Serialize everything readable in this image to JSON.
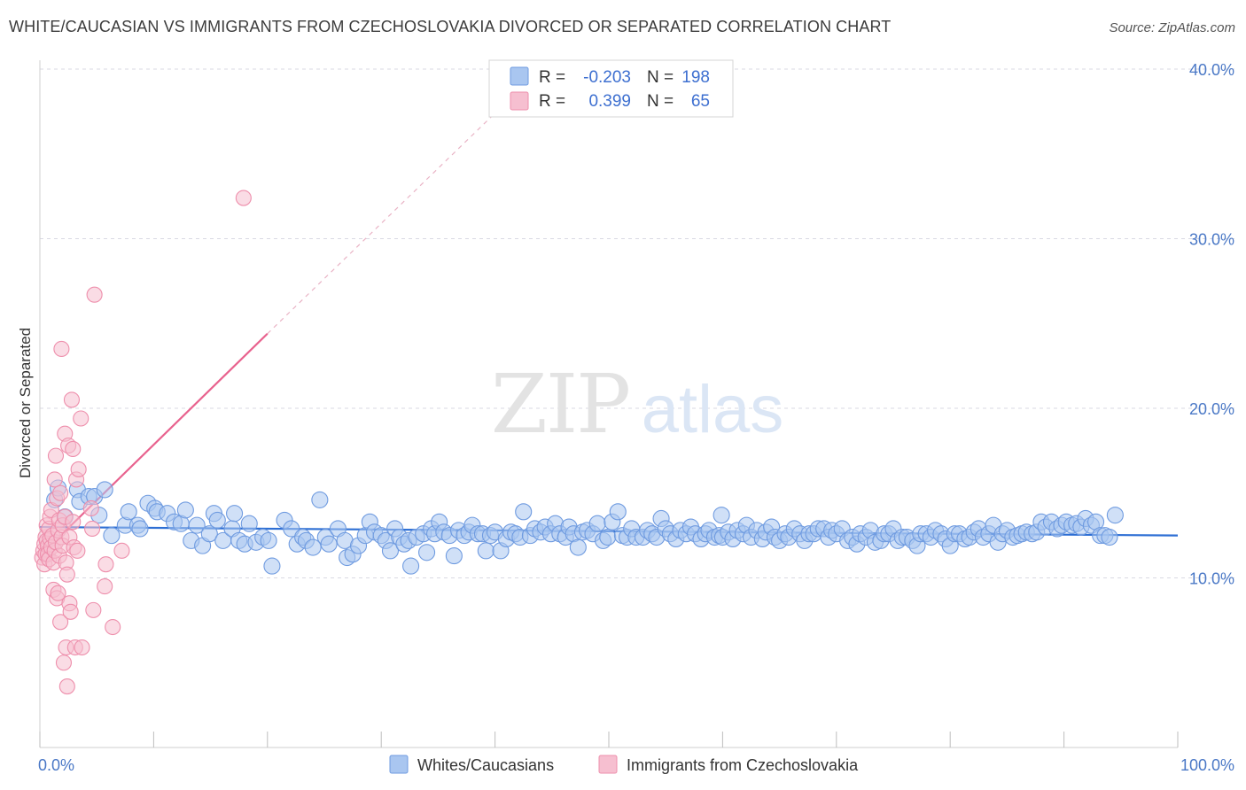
{
  "title": "WHITE/CAUCASIAN VS IMMIGRANTS FROM CZECHOSLOVAKIA DIVORCED OR SEPARATED CORRELATION CHART",
  "source": "Source: ZipAtlas.com",
  "watermark": {
    "zip": "ZIP",
    "atlas": "atlas"
  },
  "colors": {
    "blue_fill": "#a9c6f0",
    "blue_stroke": "#6f9be0",
    "blue_line": "#2e6fd4",
    "pink_fill": "#f6bfd0",
    "pink_stroke": "#ee8fac",
    "pink_line": "#e8628e",
    "grid": "#d9d9e3",
    "tick_label": "#4a78c6"
  },
  "legend": {
    "rows": [
      {
        "r_label": "R =",
        "r_value": "-0.203",
        "n_label": "N =",
        "n_value": "198",
        "series": "blue"
      },
      {
        "r_label": "R =",
        "r_value": "0.399",
        "n_label": "N =",
        "n_value": "65",
        "series": "pink"
      }
    ]
  },
  "bottom_legend": [
    {
      "label": "Whites/Caucasians",
      "series": "blue"
    },
    {
      "label": "Immigrants from Czechoslovakia",
      "series": "pink"
    }
  ],
  "chart_data": {
    "type": "scatter",
    "ylabel": "Divorced or Separated",
    "xlim": [
      0,
      100
    ],
    "ylim": [
      0,
      41.5
    ],
    "x_tick_labels": [
      {
        "value": 0,
        "label": "0.0%"
      },
      {
        "value": 100,
        "label": "100.0%"
      }
    ],
    "y_tick_labels": [
      {
        "value": 10,
        "label": "10.0%"
      },
      {
        "value": 20,
        "label": "20.0%"
      },
      {
        "value": 30,
        "label": "30.0%"
      },
      {
        "value": 40,
        "label": "40.0%"
      }
    ],
    "grid": "horizontal dashed",
    "legend_position": "top-center",
    "series": [
      {
        "name": "Whites/Caucasians",
        "color": "#a9c6f0",
        "trend": {
          "x": [
            0,
            100
          ],
          "y": [
            13.0,
            12.5
          ]
        },
        "points": [
          [
            1.3,
            14.6
          ],
          [
            1.6,
            15.3
          ],
          [
            2.2,
            13.6
          ],
          [
            3.3,
            15.2
          ],
          [
            3.5,
            14.5
          ],
          [
            4.3,
            14.8
          ],
          [
            4.8,
            14.8
          ],
          [
            5.2,
            13.7
          ],
          [
            5.7,
            15.2
          ],
          [
            6.3,
            12.5
          ],
          [
            7.5,
            13.1
          ],
          [
            7.8,
            13.9
          ],
          [
            8.6,
            13.1
          ],
          [
            8.8,
            12.9
          ],
          [
            9.5,
            14.4
          ],
          [
            10.1,
            14.1
          ],
          [
            10.3,
            13.9
          ],
          [
            11.2,
            13.8
          ],
          [
            11.8,
            13.3
          ],
          [
            12.4,
            13.2
          ],
          [
            12.8,
            14.0
          ],
          [
            13.3,
            12.2
          ],
          [
            13.8,
            13.1
          ],
          [
            14.3,
            11.9
          ],
          [
            14.9,
            12.6
          ],
          [
            15.3,
            13.8
          ],
          [
            15.6,
            13.4
          ],
          [
            16.1,
            12.2
          ],
          [
            16.9,
            12.9
          ],
          [
            17.1,
            13.8
          ],
          [
            17.5,
            12.2
          ],
          [
            18.0,
            12.0
          ],
          [
            18.4,
            13.2
          ],
          [
            19.0,
            12.1
          ],
          [
            19.6,
            12.4
          ],
          [
            20.1,
            12.2
          ],
          [
            20.4,
            10.7
          ],
          [
            21.5,
            13.4
          ],
          [
            22.1,
            12.9
          ],
          [
            22.6,
            12.0
          ],
          [
            23.1,
            12.4
          ],
          [
            23.4,
            12.2
          ],
          [
            24.0,
            11.8
          ],
          [
            24.6,
            14.6
          ],
          [
            25.1,
            12.4
          ],
          [
            25.4,
            12.0
          ],
          [
            26.2,
            12.9
          ],
          [
            26.8,
            12.2
          ],
          [
            27.0,
            11.2
          ],
          [
            27.5,
            11.4
          ],
          [
            28.0,
            11.9
          ],
          [
            28.6,
            12.5
          ],
          [
            29.0,
            13.3
          ],
          [
            29.4,
            12.7
          ],
          [
            30.0,
            12.5
          ],
          [
            30.4,
            12.2
          ],
          [
            30.8,
            11.6
          ],
          [
            31.2,
            12.9
          ],
          [
            31.6,
            12.4
          ],
          [
            32.0,
            12.0
          ],
          [
            32.4,
            12.2
          ],
          [
            32.6,
            10.7
          ],
          [
            33.1,
            12.4
          ],
          [
            33.7,
            12.6
          ],
          [
            34.0,
            11.5
          ],
          [
            34.4,
            12.9
          ],
          [
            34.7,
            12.6
          ],
          [
            35.1,
            13.3
          ],
          [
            35.5,
            12.7
          ],
          [
            36.0,
            12.5
          ],
          [
            36.4,
            11.3
          ],
          [
            36.8,
            12.8
          ],
          [
            37.3,
            12.5
          ],
          [
            37.7,
            12.7
          ],
          [
            38.0,
            13.1
          ],
          [
            38.5,
            12.6
          ],
          [
            38.9,
            12.6
          ],
          [
            39.2,
            11.6
          ],
          [
            39.6,
            12.5
          ],
          [
            40.0,
            12.7
          ],
          [
            40.5,
            11.6
          ],
          [
            41.0,
            12.3
          ],
          [
            41.4,
            12.7
          ],
          [
            41.8,
            12.6
          ],
          [
            42.2,
            12.4
          ],
          [
            42.5,
            13.9
          ],
          [
            43.1,
            12.5
          ],
          [
            43.5,
            12.9
          ],
          [
            44.0,
            12.7
          ],
          [
            44.4,
            13.0
          ],
          [
            44.9,
            12.6
          ],
          [
            45.3,
            13.2
          ],
          [
            45.7,
            12.6
          ],
          [
            46.2,
            12.4
          ],
          [
            46.5,
            13.0
          ],
          [
            46.9,
            12.6
          ],
          [
            47.3,
            11.8
          ],
          [
            47.7,
            12.7
          ],
          [
            48.1,
            12.8
          ],
          [
            48.6,
            12.6
          ],
          [
            49.0,
            13.2
          ],
          [
            49.5,
            12.2
          ],
          [
            49.9,
            12.4
          ],
          [
            50.3,
            13.3
          ],
          [
            50.8,
            13.9
          ],
          [
            51.2,
            12.5
          ],
          [
            51.6,
            12.4
          ],
          [
            52.0,
            12.9
          ],
          [
            52.4,
            12.4
          ],
          [
            53.0,
            12.4
          ],
          [
            53.4,
            12.8
          ],
          [
            53.8,
            12.6
          ],
          [
            54.2,
            12.4
          ],
          [
            54.6,
            13.5
          ],
          [
            55.0,
            12.9
          ],
          [
            55.4,
            12.6
          ],
          [
            55.9,
            12.3
          ],
          [
            56.3,
            12.8
          ],
          [
            56.8,
            12.6
          ],
          [
            57.2,
            13.0
          ],
          [
            57.6,
            12.6
          ],
          [
            58.1,
            12.3
          ],
          [
            58.5,
            12.6
          ],
          [
            58.8,
            12.8
          ],
          [
            59.3,
            12.4
          ],
          [
            59.7,
            12.5
          ],
          [
            60.0,
            12.4
          ],
          [
            60.5,
            12.7
          ],
          [
            60.9,
            12.3
          ],
          [
            61.3,
            12.8
          ],
          [
            61.8,
            12.6
          ],
          [
            62.1,
            13.1
          ],
          [
            62.5,
            12.4
          ],
          [
            63.0,
            12.8
          ],
          [
            63.5,
            12.3
          ],
          [
            63.8,
            12.7
          ],
          [
            64.3,
            13.0
          ],
          [
            64.6,
            12.4
          ],
          [
            65.0,
            12.2
          ],
          [
            65.5,
            12.6
          ],
          [
            65.8,
            12.4
          ],
          [
            66.3,
            12.9
          ],
          [
            66.8,
            12.6
          ],
          [
            67.2,
            12.2
          ],
          [
            67.6,
            12.6
          ],
          [
            68.0,
            12.6
          ],
          [
            68.4,
            12.9
          ],
          [
            68.9,
            12.9
          ],
          [
            69.3,
            12.4
          ],
          [
            69.6,
            12.8
          ],
          [
            70.0,
            12.6
          ],
          [
            70.5,
            12.9
          ],
          [
            71.0,
            12.2
          ],
          [
            71.4,
            12.4
          ],
          [
            71.8,
            12.0
          ],
          [
            72.1,
            12.6
          ],
          [
            72.6,
            12.4
          ],
          [
            73.0,
            12.8
          ],
          [
            73.4,
            12.1
          ],
          [
            73.9,
            12.2
          ],
          [
            74.2,
            12.6
          ],
          [
            74.6,
            12.6
          ],
          [
            75.0,
            12.9
          ],
          [
            75.4,
            12.2
          ],
          [
            75.8,
            12.4
          ],
          [
            76.2,
            12.4
          ],
          [
            76.7,
            12.2
          ],
          [
            77.1,
            11.9
          ],
          [
            77.4,
            12.6
          ],
          [
            77.9,
            12.6
          ],
          [
            78.3,
            12.4
          ],
          [
            78.7,
            12.8
          ],
          [
            79.2,
            12.6
          ],
          [
            79.6,
            12.3
          ],
          [
            80.0,
            11.9
          ],
          [
            80.4,
            12.6
          ],
          [
            80.8,
            12.6
          ],
          [
            81.3,
            12.3
          ],
          [
            81.7,
            12.4
          ],
          [
            82.1,
            12.7
          ],
          [
            82.5,
            12.9
          ],
          [
            82.9,
            12.4
          ],
          [
            83.4,
            12.6
          ],
          [
            83.8,
            13.1
          ],
          [
            84.2,
            12.1
          ],
          [
            84.6,
            12.6
          ],
          [
            85.0,
            12.8
          ],
          [
            85.5,
            12.4
          ],
          [
            85.9,
            12.5
          ],
          [
            86.3,
            12.6
          ],
          [
            86.7,
            12.7
          ],
          [
            87.2,
            12.6
          ],
          [
            87.6,
            12.7
          ],
          [
            88.0,
            13.3
          ],
          [
            88.4,
            13.0
          ],
          [
            88.9,
            13.3
          ],
          [
            89.4,
            12.9
          ],
          [
            89.8,
            13.1
          ],
          [
            90.2,
            13.3
          ],
          [
            90.7,
            13.1
          ],
          [
            91.1,
            13.2
          ],
          [
            91.5,
            13.0
          ],
          [
            91.9,
            13.5
          ],
          [
            92.4,
            13.1
          ],
          [
            92.8,
            13.3
          ],
          [
            93.2,
            12.5
          ],
          [
            93.6,
            12.5
          ],
          [
            94.0,
            12.4
          ],
          [
            94.5,
            13.7
          ],
          [
            59.9,
            13.7
          ]
        ]
      },
      {
        "name": "Immigrants from Czechoslovakia",
        "color": "#f6bfd0",
        "trend": {
          "x": [
            0,
            20
          ],
          "y": [
            11.3,
            24.4
          ],
          "dashed_extension": {
            "x": [
              20,
              40
            ],
            "y": [
              24.4,
              37.4
            ]
          }
        },
        "points": [
          [
            0.2,
            11.2
          ],
          [
            0.3,
            11.6
          ],
          [
            0.4,
            12.0
          ],
          [
            0.4,
            10.8
          ],
          [
            0.5,
            11.4
          ],
          [
            0.5,
            12.4
          ],
          [
            0.6,
            13.1
          ],
          [
            0.6,
            12.2
          ],
          [
            0.7,
            11.9
          ],
          [
            0.7,
            11.4
          ],
          [
            0.8,
            12.9
          ],
          [
            0.8,
            11.1
          ],
          [
            0.9,
            13.6
          ],
          [
            0.9,
            12.3
          ],
          [
            1.0,
            11.8
          ],
          [
            1.0,
            14.0
          ],
          [
            1.1,
            12.5
          ],
          [
            1.2,
            10.9
          ],
          [
            1.2,
            9.3
          ],
          [
            1.3,
            11.6
          ],
          [
            1.3,
            15.8
          ],
          [
            1.4,
            17.2
          ],
          [
            1.4,
            12.1
          ],
          [
            1.5,
            14.7
          ],
          [
            1.5,
            8.8
          ],
          [
            1.6,
            12.8
          ],
          [
            1.6,
            9.1
          ],
          [
            1.7,
            13.4
          ],
          [
            1.7,
            11.3
          ],
          [
            1.8,
            15.0
          ],
          [
            1.8,
            7.4
          ],
          [
            1.9,
            12.4
          ],
          [
            1.9,
            23.5
          ],
          [
            2.0,
            13.1
          ],
          [
            2.0,
            11.9
          ],
          [
            2.1,
            5.0
          ],
          [
            2.2,
            18.5
          ],
          [
            2.2,
            13.6
          ],
          [
            2.3,
            10.9
          ],
          [
            2.3,
            5.9
          ],
          [
            2.4,
            3.6
          ],
          [
            2.4,
            10.2
          ],
          [
            2.5,
            17.8
          ],
          [
            2.6,
            12.4
          ],
          [
            2.6,
            8.5
          ],
          [
            2.7,
            8.0
          ],
          [
            2.8,
            20.5
          ],
          [
            2.9,
            17.6
          ],
          [
            2.9,
            13.3
          ],
          [
            3.0,
            11.8
          ],
          [
            3.1,
            5.9
          ],
          [
            3.2,
            15.8
          ],
          [
            3.3,
            11.6
          ],
          [
            3.4,
            16.4
          ],
          [
            3.6,
            19.4
          ],
          [
            3.7,
            5.9
          ],
          [
            4.5,
            14.1
          ],
          [
            4.6,
            12.9
          ],
          [
            4.7,
            8.1
          ],
          [
            4.8,
            26.7
          ],
          [
            5.7,
            9.5
          ],
          [
            5.8,
            10.8
          ],
          [
            6.4,
            7.1
          ],
          [
            7.2,
            11.6
          ],
          [
            17.9,
            32.4
          ]
        ]
      }
    ]
  }
}
